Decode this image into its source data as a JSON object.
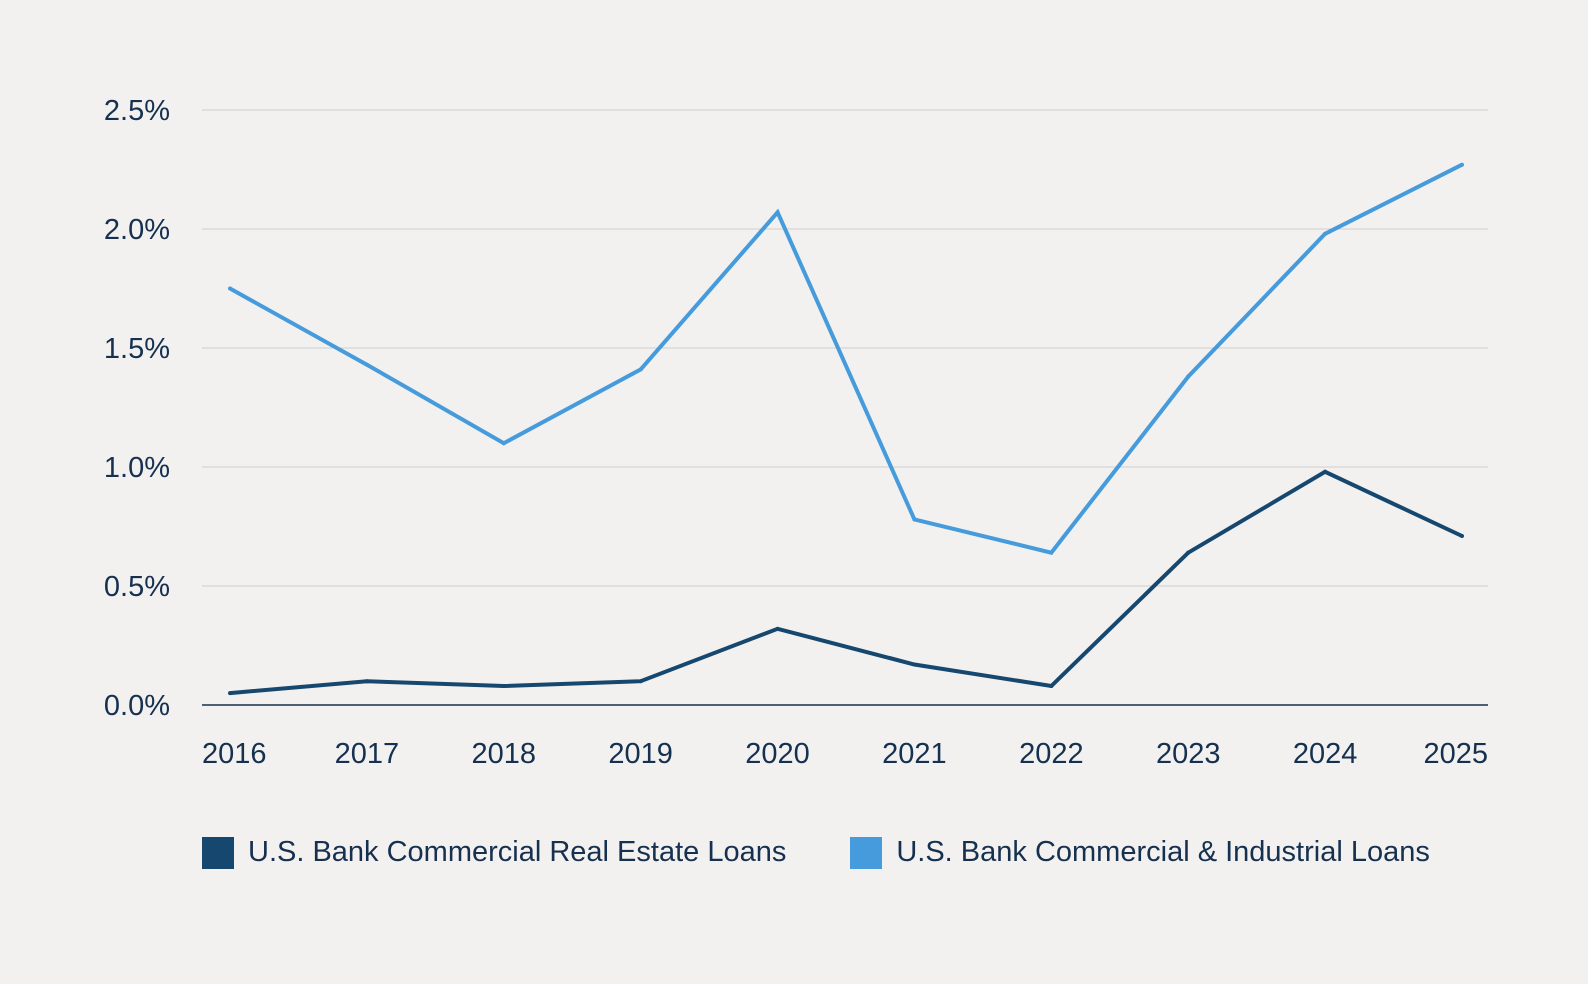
{
  "chart_data": {
    "type": "line",
    "x": [
      "2016",
      "2017",
      "2018",
      "2019",
      "2020",
      "2021",
      "2022",
      "2023",
      "2024",
      "2025"
    ],
    "ylim": [
      0,
      2.5
    ],
    "yticks": [
      "0.0%",
      "0.5%",
      "1.0%",
      "1.5%",
      "2.0%",
      "2.5%"
    ],
    "ytick_values": [
      0,
      0.5,
      1.0,
      1.5,
      2.0,
      2.5
    ],
    "grid": true,
    "legend_position": "bottom-left",
    "series": [
      {
        "name": "U.S. Bank Commercial Real Estate Loans",
        "color": "#16476e",
        "values": [
          0.05,
          0.1,
          0.08,
          0.1,
          0.32,
          0.17,
          0.08,
          0.64,
          0.98,
          0.71
        ]
      },
      {
        "name": "U.S. Bank Commercial & Industrial Loans",
        "color": "#459bdb",
        "values": [
          1.75,
          1.43,
          1.1,
          1.41,
          2.07,
          0.78,
          0.64,
          1.38,
          1.98,
          2.27
        ]
      }
    ]
  }
}
